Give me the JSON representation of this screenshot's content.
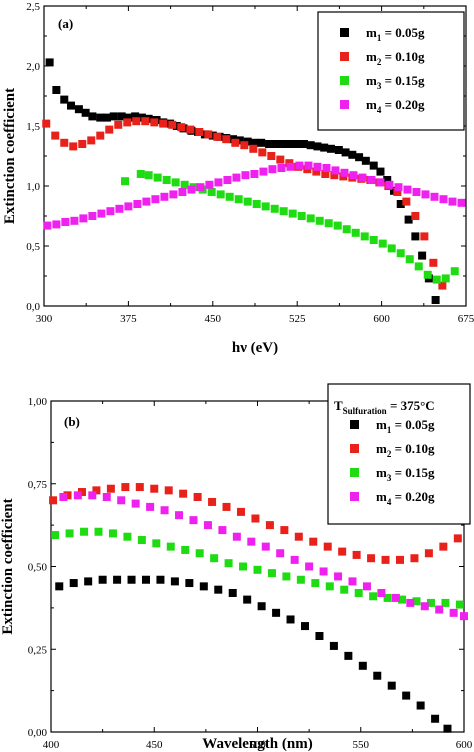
{
  "chart_data": [
    {
      "type": "scatter",
      "panel_label": "(a)",
      "xlabel": "hν (eV)",
      "ylabel": "Extinction coefficient",
      "xlim": [
        300,
        675
      ],
      "ylim": [
        0,
        2.5
      ],
      "xticks": [
        "300",
        "375",
        "450",
        "525",
        "600",
        "675"
      ],
      "yticks": [
        "0,0",
        "0,5",
        "1,0",
        "1,5",
        "2,0",
        "2,5"
      ],
      "legend_title": "",
      "legend_position": "top-right",
      "series": [
        {
          "name": "m1 = 0.05g",
          "label_parts": [
            "m",
            "1",
            " = 0.05g"
          ],
          "color": "#000000",
          "x": [
            305,
            311,
            318,
            324,
            331,
            337,
            343,
            350,
            356,
            362,
            369,
            375,
            381,
            387,
            393,
            400,
            406,
            412,
            418,
            424,
            431,
            437,
            443,
            450,
            456,
            462,
            468,
            474,
            481,
            487,
            493,
            500,
            506,
            512,
            518,
            524,
            531,
            537,
            543,
            549,
            555,
            562,
            568,
            574,
            580,
            586,
            593,
            599,
            605,
            611,
            617,
            624,
            630,
            636,
            642,
            648
          ],
          "y": [
            2.03,
            1.8,
            1.72,
            1.67,
            1.64,
            1.61,
            1.58,
            1.57,
            1.57,
            1.58,
            1.58,
            1.57,
            1.58,
            1.57,
            1.56,
            1.55,
            1.53,
            1.52,
            1.5,
            1.48,
            1.46,
            1.45,
            1.43,
            1.42,
            1.41,
            1.4,
            1.39,
            1.38,
            1.37,
            1.36,
            1.36,
            1.35,
            1.35,
            1.35,
            1.35,
            1.35,
            1.35,
            1.34,
            1.33,
            1.32,
            1.31,
            1.3,
            1.28,
            1.26,
            1.24,
            1.21,
            1.17,
            1.12,
            1.05,
            0.96,
            0.85,
            0.72,
            0.58,
            0.42,
            0.23,
            0.05
          ]
        },
        {
          "name": "m2 = 0.10g",
          "label_parts": [
            "m",
            "2",
            " = 0.10g"
          ],
          "color": "#e8211b",
          "x": [
            302,
            310,
            318,
            326,
            334,
            342,
            350,
            358,
            366,
            374,
            382,
            390,
            398,
            406,
            414,
            422,
            430,
            438,
            446,
            454,
            462,
            470,
            478,
            486,
            494,
            502,
            510,
            518,
            526,
            534,
            542,
            550,
            558,
            566,
            574,
            582,
            590,
            598,
            606,
            614,
            622,
            630,
            638,
            646,
            654
          ],
          "y": [
            1.52,
            1.42,
            1.36,
            1.33,
            1.35,
            1.38,
            1.42,
            1.47,
            1.51,
            1.53,
            1.54,
            1.54,
            1.53,
            1.52,
            1.51,
            1.49,
            1.47,
            1.45,
            1.43,
            1.41,
            1.39,
            1.36,
            1.34,
            1.31,
            1.28,
            1.25,
            1.22,
            1.19,
            1.16,
            1.14,
            1.12,
            1.1,
            1.09,
            1.08,
            1.07,
            1.06,
            1.05,
            1.03,
            1.0,
            0.95,
            0.87,
            0.75,
            0.58,
            0.36,
            0.17
          ]
        },
        {
          "name": "m3 = 0.15g",
          "label_parts": [
            "m",
            "3",
            " = 0.15g"
          ],
          "color": "#1fdc12",
          "x": [
            372,
            386,
            393,
            401,
            409,
            417,
            425,
            433,
            441,
            449,
            457,
            465,
            473,
            481,
            489,
            497,
            505,
            513,
            521,
            529,
            537,
            545,
            553,
            561,
            569,
            577,
            585,
            593,
            601,
            609,
            617,
            625,
            633,
            641,
            649,
            657,
            665
          ],
          "y": [
            1.04,
            1.1,
            1.09,
            1.07,
            1.05,
            1.03,
            1.01,
            0.99,
            0.97,
            0.95,
            0.93,
            0.91,
            0.89,
            0.87,
            0.85,
            0.83,
            0.81,
            0.79,
            0.77,
            0.75,
            0.73,
            0.71,
            0.69,
            0.67,
            0.64,
            0.61,
            0.58,
            0.55,
            0.52,
            0.48,
            0.44,
            0.39,
            0.33,
            0.26,
            0.22,
            0.23,
            0.29
          ]
        },
        {
          "name": "m4 = 0.20g",
          "label_parts": [
            "m",
            "4",
            " = 0.20g"
          ],
          "color": "#ee21ee",
          "x": [
            303,
            311,
            319,
            327,
            335,
            343,
            351,
            359,
            367,
            375,
            383,
            391,
            399,
            407,
            415,
            423,
            431,
            439,
            447,
            455,
            463,
            471,
            479,
            487,
            495,
            503,
            511,
            519,
            527,
            535,
            543,
            551,
            559,
            567,
            575,
            583,
            591,
            599,
            607,
            615,
            623,
            631,
            639,
            647,
            655,
            663,
            671
          ],
          "y": [
            0.67,
            0.68,
            0.7,
            0.71,
            0.73,
            0.75,
            0.77,
            0.79,
            0.81,
            0.83,
            0.85,
            0.87,
            0.89,
            0.91,
            0.93,
            0.95,
            0.97,
            0.99,
            1.01,
            1.03,
            1.05,
            1.07,
            1.09,
            1.1,
            1.12,
            1.14,
            1.15,
            1.16,
            1.17,
            1.17,
            1.16,
            1.15,
            1.13,
            1.11,
            1.09,
            1.07,
            1.05,
            1.03,
            1.01,
            0.99,
            0.97,
            0.95,
            0.93,
            0.91,
            0.89,
            0.87,
            0.86
          ]
        }
      ]
    },
    {
      "type": "scatter",
      "panel_label": "(b)",
      "xlabel": "Wavelength (nm)",
      "ylabel": "Extinction coefficient",
      "xlim": [
        400,
        600
      ],
      "ylim": [
        0,
        1.0
      ],
      "xticks": [
        "400",
        "450",
        "500",
        "550",
        "600"
      ],
      "yticks": [
        "0,00",
        "0,25",
        "0,50",
        "0,75",
        "1,00"
      ],
      "legend_title_parts": [
        "T",
        "Sulfuration",
        " = 375°C"
      ],
      "legend_position": "top-right",
      "series": [
        {
          "name": "m1 = 0.05g",
          "label_parts": [
            "m",
            "1",
            " = 0.05g"
          ],
          "color": "#000000",
          "x": [
            404,
            411,
            418,
            425,
            432,
            439,
            446,
            453,
            460,
            467,
            474,
            481,
            488,
            495,
            502,
            509,
            516,
            523,
            530,
            537,
            544,
            551,
            558,
            565,
            572,
            579,
            586,
            592
          ],
          "y": [
            0.44,
            0.45,
            0.455,
            0.46,
            0.46,
            0.46,
            0.46,
            0.46,
            0.455,
            0.45,
            0.44,
            0.43,
            0.42,
            0.4,
            0.38,
            0.36,
            0.34,
            0.32,
            0.29,
            0.26,
            0.23,
            0.2,
            0.17,
            0.14,
            0.11,
            0.08,
            0.04,
            0.01
          ]
        },
        {
          "name": "m2 = 0.10g",
          "label_parts": [
            "m",
            "2",
            " = 0.10g"
          ],
          "color": "#e8211b",
          "x": [
            401,
            408,
            415,
            422,
            429,
            436,
            443,
            450,
            457,
            464,
            471,
            478,
            485,
            492,
            499,
            506,
            513,
            520,
            527,
            534,
            541,
            548,
            555,
            562,
            569,
            576,
            583,
            590,
            597
          ],
          "y": [
            0.7,
            0.715,
            0.725,
            0.73,
            0.735,
            0.74,
            0.74,
            0.735,
            0.73,
            0.72,
            0.71,
            0.695,
            0.68,
            0.665,
            0.645,
            0.625,
            0.61,
            0.59,
            0.575,
            0.56,
            0.545,
            0.535,
            0.525,
            0.52,
            0.52,
            0.525,
            0.54,
            0.56,
            0.585
          ]
        },
        {
          "name": "m3 = 0.15g",
          "label_parts": [
            "m",
            "3",
            " = 0.15g"
          ],
          "color": "#1fdc12",
          "x": [
            402,
            409,
            416,
            423,
            430,
            437,
            444,
            451,
            458,
            465,
            472,
            479,
            486,
            493,
            500,
            507,
            514,
            521,
            528,
            535,
            542,
            549,
            556,
            563,
            570,
            577,
            584,
            591,
            598
          ],
          "y": [
            0.595,
            0.6,
            0.605,
            0.605,
            0.6,
            0.59,
            0.58,
            0.57,
            0.56,
            0.55,
            0.54,
            0.525,
            0.51,
            0.5,
            0.49,
            0.48,
            0.47,
            0.46,
            0.45,
            0.44,
            0.43,
            0.42,
            0.41,
            0.405,
            0.4,
            0.395,
            0.39,
            0.39,
            0.385
          ]
        },
        {
          "name": "m4 = 0.20g",
          "label_parts": [
            "m",
            "4",
            " = 0.20g"
          ],
          "color": "#ee21ee",
          "x": [
            406,
            413,
            420,
            427,
            434,
            441,
            448,
            455,
            462,
            469,
            476,
            483,
            490,
            497,
            504,
            511,
            518,
            525,
            532,
            539,
            546,
            553,
            560,
            567,
            574,
            581,
            588,
            595,
            600
          ],
          "y": [
            0.71,
            0.715,
            0.715,
            0.71,
            0.7,
            0.69,
            0.68,
            0.67,
            0.655,
            0.64,
            0.625,
            0.61,
            0.59,
            0.575,
            0.56,
            0.54,
            0.52,
            0.5,
            0.485,
            0.47,
            0.455,
            0.44,
            0.42,
            0.405,
            0.39,
            0.38,
            0.37,
            0.36,
            0.35
          ]
        }
      ]
    }
  ]
}
